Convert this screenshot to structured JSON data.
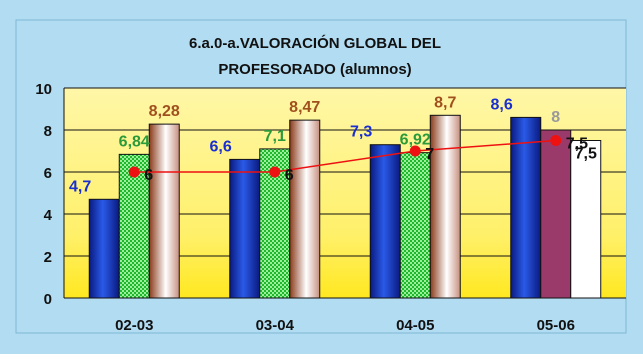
{
  "chart_data": {
    "type": "bar",
    "title_line1": "6.a.0-a.VALORACIÓN GLOBAL DEL",
    "title_line2": "PROFESORADO (alumnos)",
    "xlabel": "",
    "ylabel": "",
    "ylim": [
      0,
      10
    ],
    "yticks": [
      "0",
      "2",
      "4",
      "6",
      "8",
      "10"
    ],
    "grid": true,
    "categories": [
      "02-03",
      "03-04",
      "04-05",
      "05-06"
    ],
    "series": [
      {
        "values": [
          4.7,
          6.6,
          7.3,
          8.6
        ],
        "labels": [
          "4,7",
          "6,6",
          "7,3",
          "8,6"
        ],
        "color": "#1a3ccf",
        "pattern": "blue-gradient"
      },
      {
        "values": [
          6.84,
          7.1,
          6.92,
          null
        ],
        "labels": [
          "6,84",
          "7,1",
          "6,92",
          ""
        ],
        "color": "#22c035",
        "pattern": "green-checker"
      },
      {
        "values": [
          8.28,
          8.47,
          8.7,
          null
        ],
        "labels": [
          "8,28",
          "8,47",
          "8,7",
          ""
        ],
        "color": "#9a4a2a",
        "pattern": "brown-gradient"
      },
      {
        "values": [
          null,
          null,
          null,
          8
        ],
        "labels": [
          "",
          "",
          "",
          "8"
        ],
        "color": "#9a3a6a",
        "pattern": "solid"
      },
      {
        "values": [
          null,
          null,
          null,
          7.5
        ],
        "labels": [
          "",
          "",
          "",
          "7,5"
        ],
        "color": "#ffffff",
        "pattern": "solid"
      }
    ],
    "line": {
      "values": [
        6,
        6,
        7,
        7.5
      ],
      "labels": [
        "6",
        "6",
        "7",
        "7,5"
      ],
      "color": "#ee1111"
    }
  }
}
